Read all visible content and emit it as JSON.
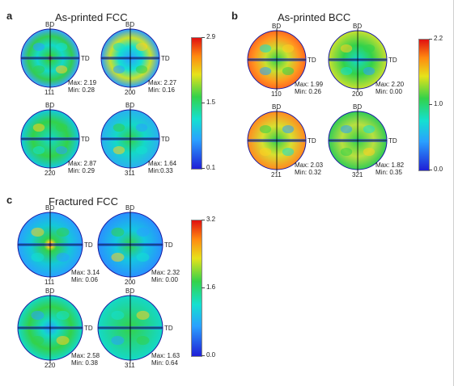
{
  "colors": {
    "axis_line": "#000000",
    "pole_outline": "#1a1aa0"
  },
  "panels": [
    {
      "letter": "a",
      "title": "As-printed FCC",
      "colorbar": {
        "max": "2.9",
        "mid": "1.5",
        "min": "0.1"
      },
      "poles": [
        {
          "family": "111",
          "bd": "BD",
          "td": "TD",
          "max": "Max: 2.19",
          "min": "Min: 0.28",
          "style": "fcc111"
        },
        {
          "family": "200",
          "bd": "BD",
          "td": "TD",
          "max": "Max: 2.27",
          "min": "Min: 0.16",
          "style": "fcc200"
        },
        {
          "family": "220",
          "bd": "BD",
          "td": "TD",
          "max": "Max: 2.87",
          "min": "Min: 0.29",
          "style": "fcc220"
        },
        {
          "family": "311",
          "bd": "BD",
          "td": "TD",
          "max": "Max: 1.64",
          "min": "Min:0.33",
          "style": "fcc311"
        }
      ]
    },
    {
      "letter": "b",
      "title": "As-printed BCC",
      "colorbar": {
        "max": "2.2",
        "mid": "1.0",
        "min": "0.0"
      },
      "poles": [
        {
          "family": "110",
          "bd": "BD",
          "td": "TD",
          "max": "Max: 1.99",
          "min": "Min: 0.26",
          "style": "bcc110"
        },
        {
          "family": "200",
          "bd": "BD",
          "td": "TD",
          "max": "Max: 2.20",
          "min": "Min: 0.00",
          "style": "bcc200"
        },
        {
          "family": "211",
          "bd": "BD",
          "td": "TD",
          "max": "Max: 2.03",
          "min": "Min: 0.32",
          "style": "bcc211"
        },
        {
          "family": "321",
          "bd": "BD",
          "td": "TD",
          "max": "Max: 1.82",
          "min": "Min: 0.35",
          "style": "bcc321"
        }
      ]
    },
    {
      "letter": "c",
      "title": "Fractured FCC",
      "colorbar": {
        "max": "3.2",
        "mid": "1.6",
        "min": "0.0"
      },
      "poles": [
        {
          "family": "111",
          "bd": "BD",
          "td": "TD",
          "max": "Max: 3.14",
          "min": "Min: 0.06",
          "style": "fr111"
        },
        {
          "family": "200",
          "bd": "BD",
          "td": "TD",
          "max": "Max: 2.32",
          "min": "Min: 0.00",
          "style": "fr200"
        },
        {
          "family": "220",
          "bd": "BD",
          "td": "TD",
          "max": "Max: 2.58",
          "min": "Min: 0.38",
          "style": "fr220"
        },
        {
          "family": "311",
          "bd": "BD",
          "td": "TD",
          "max": "Max: 1.63",
          "min": "Min: 0.64",
          "style": "fr311"
        }
      ]
    }
  ]
}
